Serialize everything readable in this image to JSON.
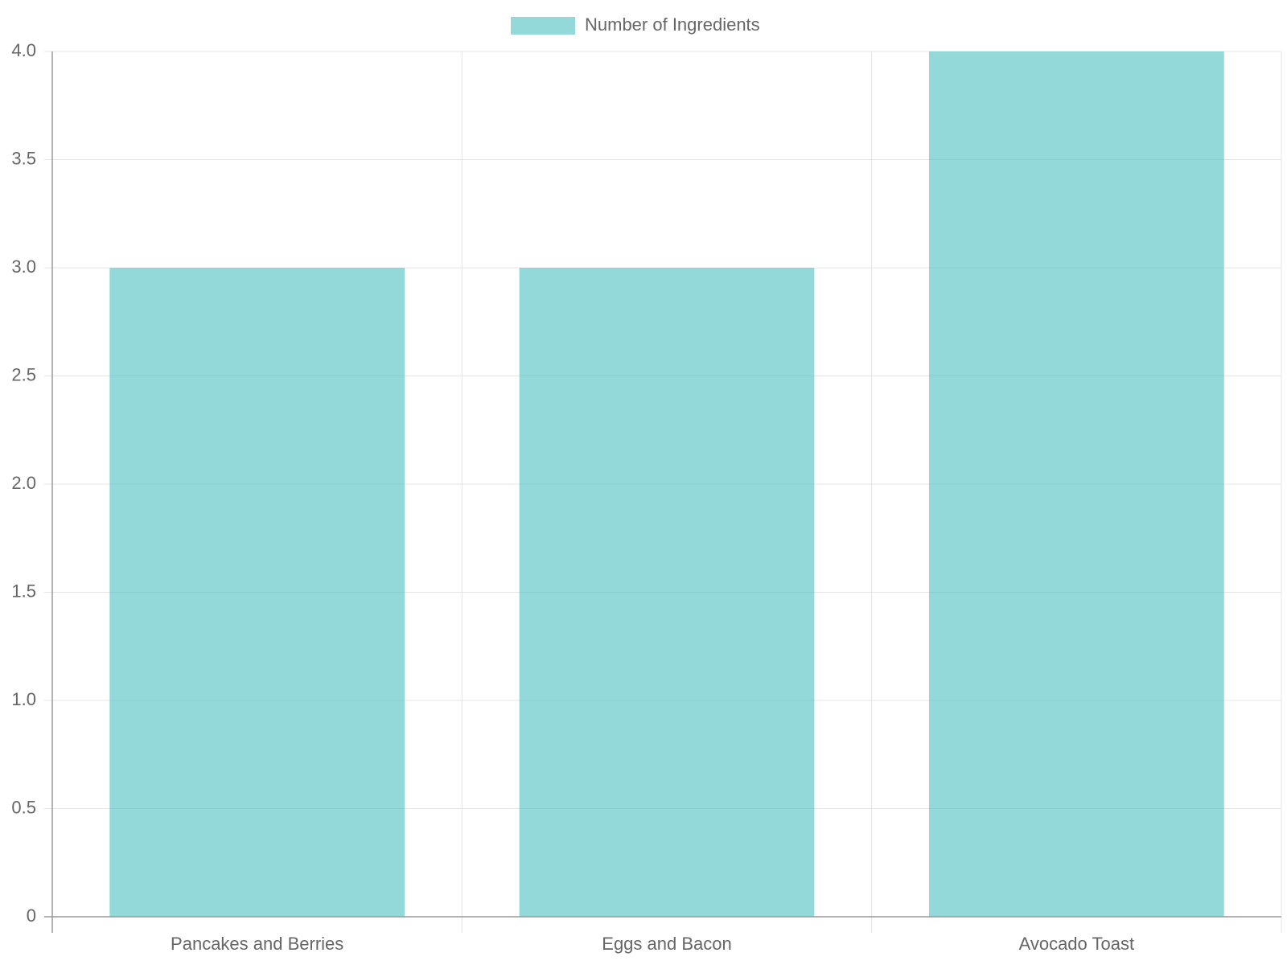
{
  "chart_data": {
    "type": "bar",
    "categories": [
      "Pancakes and Berries",
      "Eggs and Bacon",
      "Avocado Toast"
    ],
    "series": [
      {
        "name": "Number of Ingredients",
        "color": "rgba(75, 192, 192, 0.6)",
        "values": [
          3,
          3,
          4
        ]
      }
    ],
    "ylim": [
      0,
      4
    ],
    "yticks": [
      0,
      0.5,
      {
        "value": 1,
        "label": "1.0"
      },
      1.5,
      {
        "value": 2,
        "label": "2.0"
      },
      2.5,
      {
        "value": 3,
        "label": "3.0"
      },
      3.5,
      {
        "value": 4,
        "label": "4.0"
      }
    ],
    "grid": true,
    "legend": "top"
  }
}
